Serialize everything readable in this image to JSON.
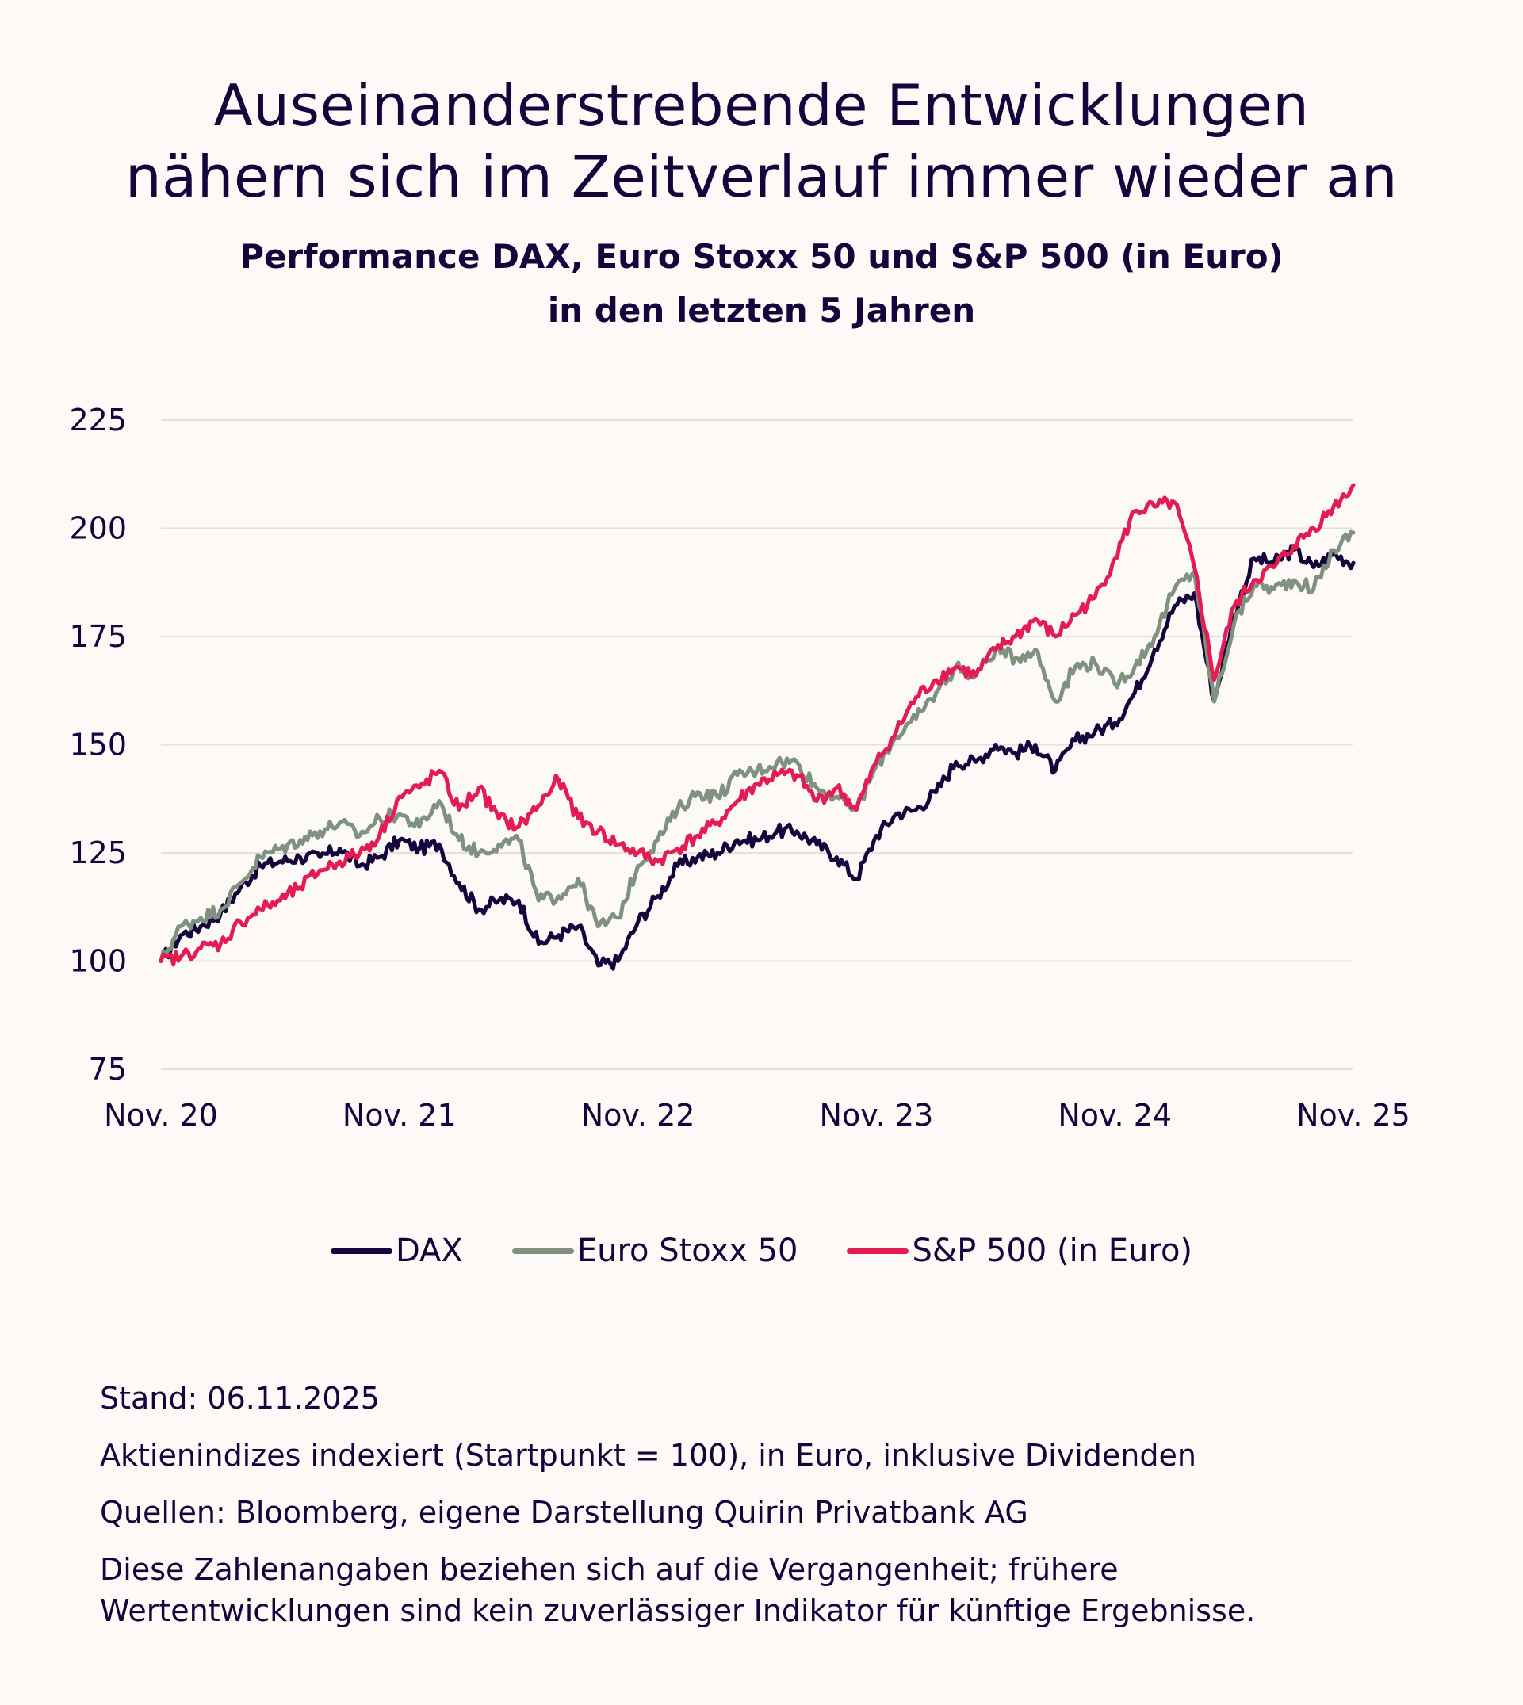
{
  "title": {
    "line1": "Auseinanderstrebende Entwicklungen",
    "line2": "nähern sich im Zeitverlauf immer wieder an"
  },
  "subtitle": {
    "line1": "Performance DAX, Euro Stoxx 50 und S&P 500 (in Euro)",
    "line2": "in den letzten 5 Jahren"
  },
  "colors": {
    "background": "#fcf9f6",
    "text": "#14063c",
    "grid": "#e3e0dd"
  },
  "chart_data": {
    "type": "line",
    "title": "Performance DAX, Euro Stoxx 50 und S&P 500 (in Euro) in den letzten 5 Jahren",
    "xlabel": "",
    "ylabel": "",
    "x_unit": "months since Nov. 2020",
    "x": [
      0,
      1,
      2,
      3,
      4,
      5,
      6,
      7,
      8,
      9,
      10,
      11,
      12,
      13,
      14,
      15,
      16,
      17,
      18,
      19,
      20,
      21,
      22,
      23,
      24,
      25,
      26,
      27,
      28,
      29,
      30,
      31,
      32,
      33,
      34,
      35,
      36,
      37,
      38,
      39,
      40,
      41,
      42,
      43,
      44,
      45,
      46,
      47,
      48,
      49,
      50,
      51,
      52,
      53,
      54,
      55,
      56,
      57,
      58,
      59,
      60
    ],
    "xlim": [
      0,
      60
    ],
    "ylim": [
      75,
      225
    ],
    "grid": true,
    "y_ticks": [
      75,
      100,
      125,
      150,
      175,
      200,
      225
    ],
    "x_ticks": [
      {
        "pos": 0,
        "label": "Nov. 20"
      },
      {
        "pos": 12,
        "label": "Nov. 21"
      },
      {
        "pos": 24,
        "label": "Nov. 22"
      },
      {
        "pos": 36,
        "label": "Nov. 23"
      },
      {
        "pos": 48,
        "label": "Nov. 24"
      },
      {
        "pos": 60,
        "label": "Nov. 25"
      }
    ],
    "legend_position": "bottom-center",
    "series": [
      {
        "name": "DAX",
        "color": "#14063c",
        "values": [
          100,
          106,
          108,
          111,
          117,
          122,
          123,
          124,
          124,
          126,
          122,
          124,
          128,
          126,
          127,
          118,
          112,
          114,
          114,
          104,
          106,
          108,
          99,
          100,
          109,
          115,
          122,
          124,
          125,
          128,
          128,
          130,
          130,
          127,
          124,
          119,
          129,
          134,
          135,
          139,
          146,
          146,
          150,
          148,
          150,
          144,
          151,
          153,
          155,
          162,
          172,
          182,
          185,
          160,
          180,
          193,
          192,
          195,
          191,
          194,
          192
        ]
      },
      {
        "name": "Euro Stoxx 50",
        "color": "#7f917f",
        "values": [
          100,
          108,
          110,
          112,
          118,
          124,
          126,
          128,
          130,
          132,
          129,
          133,
          134,
          131,
          137,
          128,
          125,
          127,
          128,
          114,
          115,
          119,
          108,
          110,
          122,
          128,
          135,
          139,
          138,
          143,
          144,
          146,
          146,
          140,
          138,
          135,
          145,
          152,
          156,
          162,
          168,
          166,
          172,
          170,
          172,
          160,
          168,
          169,
          164,
          168,
          175,
          186,
          190,
          160,
          178,
          187,
          186,
          188,
          186,
          195,
          199
        ]
      },
      {
        "name": "S&P 500 (in Euro)",
        "color": "#e31c53",
        "values": [
          100,
          101,
          103,
          104,
          109,
          112,
          114,
          117,
          121,
          123,
          125,
          129,
          138,
          140,
          144,
          135,
          140,
          133,
          131,
          136,
          142,
          133,
          130,
          127,
          125,
          123,
          126,
          129,
          132,
          137,
          141,
          143,
          143,
          137,
          140,
          135,
          146,
          153,
          161,
          165,
          168,
          166,
          172,
          175,
          179,
          175,
          180,
          184,
          193,
          204,
          205,
          206,
          191,
          165,
          182,
          188,
          191,
          196,
          200,
          205,
          210
        ]
      }
    ]
  },
  "legend": {
    "items": [
      {
        "label": "DAX",
        "color": "#14063c"
      },
      {
        "label": "Euro Stoxx 50",
        "color": "#7f917f"
      },
      {
        "label": "S&P 500 (in Euro)",
        "color": "#e31c53"
      }
    ]
  },
  "footer": {
    "stand": "Stand: 06.11.2025",
    "note": "Aktienindizes indexiert (Startpunkt = 100), in Euro, inklusive Dividenden",
    "sources": "Quellen: Bloomberg, eigene Darstellung Quirin Privatbank AG",
    "disclaimer_line1": "Diese Zahlenangaben beziehen sich auf die Vergangenheit; frühere",
    "disclaimer_line2": "Wertentwicklungen sind kein zuverlässiger Indikator für künftige Ergebnisse."
  }
}
